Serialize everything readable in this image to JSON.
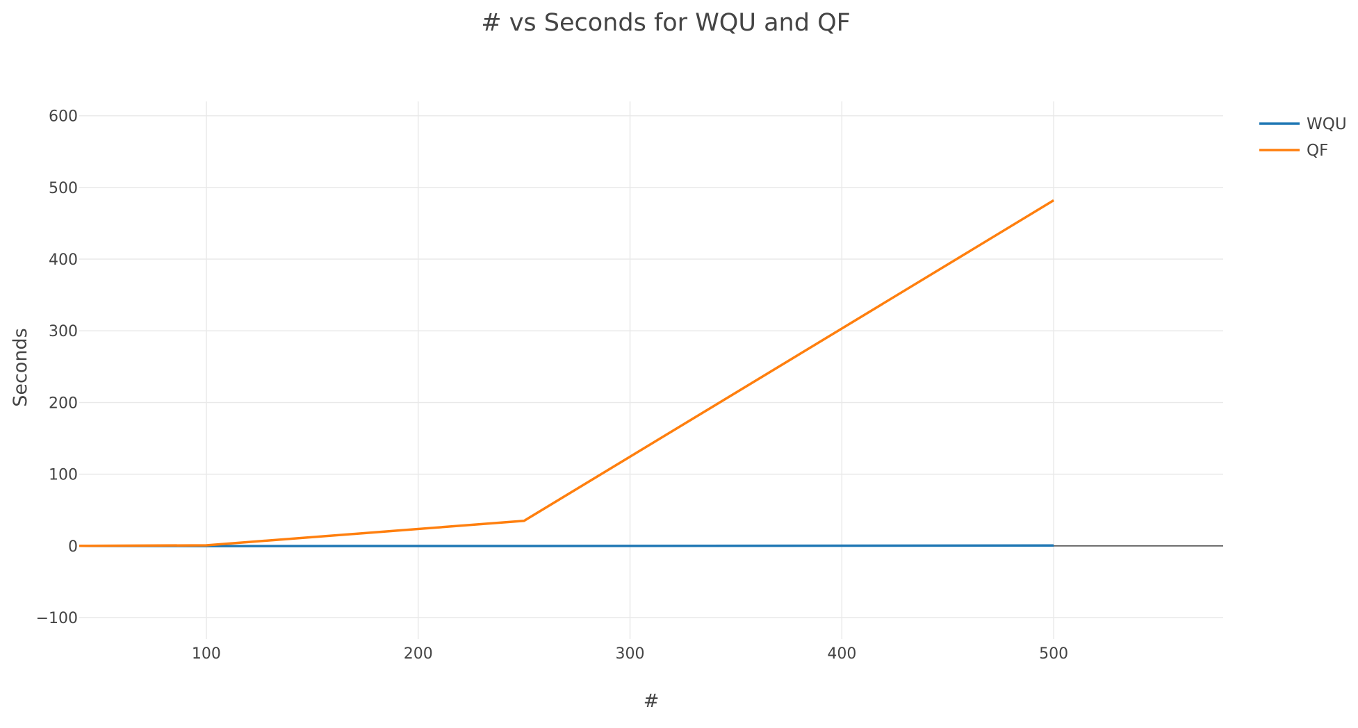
{
  "chart_data": {
    "type": "line",
    "title": "# vs Seconds for WQU and QF",
    "xlabel": "#",
    "ylabel": "Seconds",
    "xlim": [
      40,
      580
    ],
    "ylim": [
      -130,
      620
    ],
    "xticks": [
      100,
      200,
      300,
      400,
      500
    ],
    "xtick_labels": [
      "100",
      "200",
      "300",
      "400",
      "500"
    ],
    "yticks": [
      -100,
      0,
      100,
      200,
      300,
      400,
      500,
      600
    ],
    "ytick_labels": [
      "−100",
      "0",
      "100",
      "200",
      "300",
      "400",
      "500",
      "600"
    ],
    "grid": true,
    "zero_line": true,
    "legend_position": "top-right",
    "series": [
      {
        "name": "WQU",
        "color": "#1f77b4",
        "x": [
          40,
          100,
          250,
          500
        ],
        "y": [
          0,
          -0.3,
          -0.2,
          0.5
        ]
      },
      {
        "name": "QF",
        "color": "#ff7f0e",
        "x": [
          40,
          100,
          250,
          500
        ],
        "y": [
          0,
          0.8,
          35,
          482
        ]
      }
    ]
  }
}
